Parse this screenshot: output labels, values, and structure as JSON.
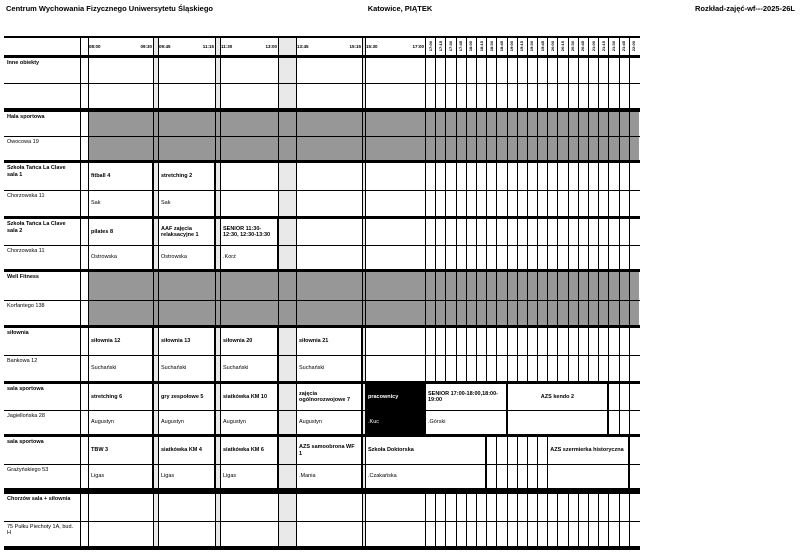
{
  "page_header": {
    "left": "Centrum Wychowania Fizycznego Uniwersytetu Śląskiego",
    "center": "Katowice, PIĄTEK",
    "right": "Rozkład-zajęć-wf---2025-26L"
  },
  "colors": {
    "blocked": "#979797",
    "gap": "#e9e9e9",
    "line": "#000000",
    "special_bg": "#000000",
    "special_fg": "#ffffff"
  },
  "timebar": {
    "slots": [
      {
        "start": "08:00",
        "end": "09:30"
      },
      {
        "start": "09:45",
        "end": "11:15"
      },
      {
        "start": "11:30",
        "end": "13:00"
      },
      {
        "start": "13:45",
        "end": "15:15"
      },
      {
        "start": "15:30",
        "end": "17:00"
      }
    ],
    "quarters": [
      "17:00",
      "17:15",
      "17:30",
      "17:45",
      "18:00",
      "18:15",
      "18:30",
      "18:45",
      "19:00",
      "19:15",
      "19:30",
      "19:45",
      "20:00",
      "20:15",
      "20:30",
      "20:45",
      "21:00",
      "21:15",
      "21:30",
      "21:45",
      "22:00"
    ]
  },
  "rows": [
    {
      "facility": "Inne obiekty",
      "address": "",
      "blocked": false,
      "classes": []
    },
    {
      "facility": "Hala sportowa",
      "address": "Owocowa 19",
      "blocked": true,
      "classes": []
    },
    {
      "facility": "Szkoła Tańca La Clave sala 1",
      "address": "Chorzowska 11",
      "blocked": false,
      "classes": [
        {
          "from": "S0",
          "to": "S0",
          "title": "fitball 4",
          "instructor": "Sak"
        },
        {
          "from": "S1",
          "to": "S1",
          "title": "stretching 2",
          "instructor": "Sak"
        }
      ]
    },
    {
      "facility": "Szkoła Tańca La Clave sala 2",
      "address": "Chorzowska 11",
      "blocked": false,
      "classes": [
        {
          "from": "S0",
          "to": "S0",
          "title": "pilates 8",
          "instructor": "Ostrowska"
        },
        {
          "from": "S1",
          "to": "S1",
          "title": "AAF zajęcia relaksacyjne 1",
          "instructor": "Ostrowska"
        },
        {
          "from": "S2",
          "to": "S2",
          "title": "SENIOR 11:30-12:30, 12:30-13:30",
          "instructor": ".Korż"
        }
      ]
    },
    {
      "facility": "Well Fitness",
      "address": "Korfantego 138",
      "blocked": true,
      "classes": []
    },
    {
      "facility": "siłownia",
      "address": "Bankowa 12",
      "blocked": false,
      "classes": [
        {
          "from": "S0",
          "to": "S0",
          "title": "siłownia 12",
          "instructor": "Suchański"
        },
        {
          "from": "S1",
          "to": "S1",
          "title": "siłownia 13",
          "instructor": "Suchański"
        },
        {
          "from": "S2",
          "to": "S2",
          "title": "siłownia 20",
          "instructor": "Suchański"
        },
        {
          "from": "S3",
          "to": "S3",
          "title": "siłownia 21",
          "instructor": "Suchański"
        }
      ]
    },
    {
      "facility": "sala sportowa",
      "address": "Jagiellońska 28",
      "blocked": false,
      "classes": [
        {
          "from": "S0",
          "to": "S0",
          "title": "stretching 6",
          "instructor": "Augustyn"
        },
        {
          "from": "S1",
          "to": "S1",
          "title": "gry zespołowe 5",
          "instructor": "Augustyn"
        },
        {
          "from": "S2",
          "to": "S2",
          "title": "siatkówka KM 10",
          "instructor": "Augustyn"
        },
        {
          "from": "S3",
          "to": "S3",
          "title": "zajęcia ogólnorozwojowe 7",
          "instructor": "Augustyn"
        },
        {
          "from": "S4",
          "to": "S4",
          "title": "pracownicy",
          "instructor": ".Kuc",
          "inverted": true
        },
        {
          "from": "Q0",
          "to": "Q7",
          "title": "SENIOR 17:00-18:00,18:00-19:00",
          "instructor": ".Górski"
        },
        {
          "from": "Q8",
          "to": "Q17",
          "title": "AZS kendo 2",
          "instructor": "",
          "center": true
        }
      ]
    },
    {
      "facility": "sala sportowa",
      "address": "Grażyńskiego 53",
      "blocked": false,
      "classes": [
        {
          "from": "S0",
          "to": "S0",
          "title": "TBW 3",
          "instructor": "Ligas"
        },
        {
          "from": "S1",
          "to": "S1",
          "title": "siatkówka KM 4",
          "instructor": "Ligas"
        },
        {
          "from": "S2",
          "to": "S2",
          "title": "siatkówka KM 6",
          "instructor": "Ligas"
        },
        {
          "from": "S3",
          "to": "S3",
          "title": "AZS samoobrona WF 1",
          "instructor": ".Mania"
        },
        {
          "from": "S4",
          "to": "Q5",
          "title": "Szkoła Doktorska",
          "instructor": ".Czakańska"
        },
        {
          "from": "Q12",
          "to": "Q19",
          "title": "AZS szermierka historyczna",
          "instructor": "",
          "clip": true
        }
      ]
    },
    {
      "facility": "Chorzów sala + siłownia",
      "address": "75 Pułku Piechoty 1A, bud. H",
      "blocked": false,
      "classes": []
    }
  ]
}
